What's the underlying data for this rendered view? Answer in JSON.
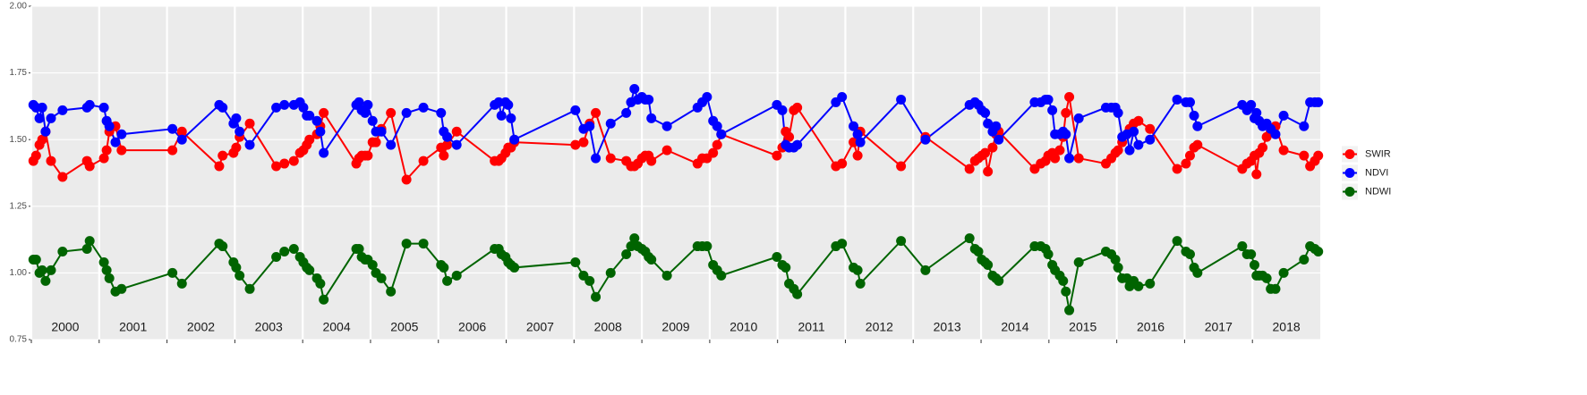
{
  "chart_data": {
    "type": "line",
    "x": [
      2000.03,
      2000.07,
      2000.12,
      2000.16,
      2000.21,
      2000.29,
      2000.46,
      2000.82,
      2000.86,
      2001.07,
      2001.11,
      2001.15,
      2001.24,
      2001.33,
      2002.08,
      2002.22,
      2002.77,
      2002.82,
      2002.98,
      2003.02,
      2003.07,
      2003.22,
      2003.61,
      2003.73,
      2003.87,
      2003.96,
      2004.01,
      2004.06,
      2004.1,
      2004.21,
      2004.26,
      2004.31,
      2004.79,
      2004.83,
      2004.87,
      2004.92,
      2004.96,
      2005.03,
      2005.08,
      2005.16,
      2005.3,
      2005.53,
      2005.78,
      2006.04,
      2006.08,
      2006.13,
      2006.27,
      2006.83,
      2006.89,
      2006.93,
      2006.99,
      2007.03,
      2007.07,
      2007.12,
      2008.02,
      2008.14,
      2008.23,
      2008.32,
      2008.54,
      2008.77,
      2008.84,
      2008.89,
      2008.94,
      2009.0,
      2009.05,
      2009.1,
      2009.14,
      2009.37,
      2009.82,
      2009.89,
      2009.96,
      2010.05,
      2010.11,
      2010.17,
      2010.99,
      2011.07,
      2011.12,
      2011.17,
      2011.24,
      2011.29,
      2011.86,
      2011.95,
      2012.12,
      2012.18,
      2012.22,
      2012.82,
      2013.18,
      2013.83,
      2013.91,
      2013.96,
      2014.01,
      2014.06,
      2014.1,
      2014.17,
      2014.22,
      2014.26,
      2014.79,
      2014.88,
      2014.95,
      2014.99,
      2015.05,
      2015.09,
      2015.16,
      2015.21,
      2015.25,
      2015.3,
      2015.44,
      2015.84,
      2015.92,
      2015.98,
      2016.02,
      2016.08,
      2016.15,
      2016.19,
      2016.25,
      2016.32,
      2016.49,
      2016.89,
      2017.02,
      2017.08,
      2017.14,
      2017.19,
      2017.85,
      2017.92,
      2017.98,
      2018.03,
      2018.06,
      2018.1,
      2018.15,
      2018.21,
      2018.27,
      2018.34,
      2018.46,
      2018.76,
      2018.85,
      2018.92,
      2018.97
    ],
    "series": [
      {
        "name": "SWIR",
        "color": "#ff0000",
        "values": [
          1.42,
          1.44,
          1.48,
          1.5,
          1.53,
          1.42,
          1.36,
          1.42,
          1.4,
          1.43,
          1.46,
          1.53,
          1.55,
          1.46,
          1.46,
          1.53,
          1.4,
          1.44,
          1.45,
          1.47,
          1.51,
          1.56,
          1.4,
          1.41,
          1.42,
          1.45,
          1.46,
          1.48,
          1.5,
          1.52,
          1.55,
          1.6,
          1.41,
          1.43,
          1.44,
          1.44,
          1.44,
          1.49,
          1.49,
          1.54,
          1.6,
          1.35,
          1.42,
          1.47,
          1.44,
          1.48,
          1.53,
          1.42,
          1.42,
          1.43,
          1.45,
          1.47,
          1.47,
          1.49,
          1.48,
          1.49,
          1.56,
          1.6,
          1.43,
          1.42,
          1.4,
          1.4,
          1.41,
          1.43,
          1.44,
          1.44,
          1.42,
          1.46,
          1.41,
          1.43,
          1.43,
          1.45,
          1.48,
          1.52,
          1.44,
          1.47,
          1.53,
          1.51,
          1.61,
          1.62,
          1.4,
          1.41,
          1.49,
          1.44,
          1.53,
          1.4,
          1.51,
          1.39,
          1.42,
          1.43,
          1.44,
          1.45,
          1.38,
          1.47,
          1.52,
          1.53,
          1.39,
          1.41,
          1.42,
          1.44,
          1.45,
          1.43,
          1.46,
          1.51,
          1.6,
          1.66,
          1.43,
          1.41,
          1.43,
          1.45,
          1.46,
          1.49,
          1.52,
          1.54,
          1.56,
          1.57,
          1.54,
          1.39,
          1.41,
          1.44,
          1.47,
          1.48,
          1.39,
          1.41,
          1.42,
          1.44,
          1.37,
          1.45,
          1.47,
          1.51,
          1.53,
          1.55,
          1.46,
          1.44,
          1.4,
          1.42,
          1.44
        ]
      },
      {
        "name": "NDVI",
        "color": "#0000ff",
        "values": [
          1.63,
          1.62,
          1.58,
          1.62,
          1.53,
          1.58,
          1.61,
          1.62,
          1.63,
          1.62,
          1.57,
          1.55,
          1.49,
          1.52,
          1.54,
          1.5,
          1.63,
          1.62,
          1.56,
          1.58,
          1.53,
          1.48,
          1.62,
          1.63,
          1.63,
          1.64,
          1.62,
          1.59,
          1.59,
          1.57,
          1.53,
          1.45,
          1.63,
          1.64,
          1.61,
          1.6,
          1.63,
          1.57,
          1.53,
          1.53,
          1.48,
          1.6,
          1.62,
          1.6,
          1.53,
          1.51,
          1.48,
          1.63,
          1.64,
          1.59,
          1.64,
          1.63,
          1.58,
          1.5,
          1.61,
          1.54,
          1.55,
          1.43,
          1.56,
          1.6,
          1.64,
          1.69,
          1.65,
          1.66,
          1.65,
          1.65,
          1.58,
          1.55,
          1.62,
          1.64,
          1.66,
          1.57,
          1.55,
          1.52,
          1.63,
          1.61,
          1.48,
          1.47,
          1.47,
          1.48,
          1.64,
          1.66,
          1.55,
          1.52,
          1.49,
          1.65,
          1.5,
          1.63,
          1.64,
          1.63,
          1.61,
          1.6,
          1.56,
          1.53,
          1.55,
          1.5,
          1.64,
          1.64,
          1.65,
          1.65,
          1.61,
          1.52,
          1.52,
          1.53,
          1.52,
          1.43,
          1.58,
          1.62,
          1.62,
          1.62,
          1.6,
          1.51,
          1.52,
          1.46,
          1.53,
          1.48,
          1.5,
          1.65,
          1.64,
          1.64,
          1.59,
          1.55,
          1.63,
          1.61,
          1.63,
          1.58,
          1.6,
          1.57,
          1.55,
          1.56,
          1.54,
          1.52,
          1.59,
          1.55,
          1.64,
          1.64,
          1.64
        ]
      },
      {
        "name": "NDWI",
        "color": "#006400",
        "values": [
          1.05,
          1.05,
          1.0,
          1.01,
          0.97,
          1.01,
          1.08,
          1.09,
          1.12,
          1.04,
          1.01,
          0.98,
          0.93,
          0.94,
          1.0,
          0.96,
          1.11,
          1.1,
          1.04,
          1.02,
          0.99,
          0.94,
          1.06,
          1.08,
          1.09,
          1.06,
          1.04,
          1.02,
          1.01,
          0.98,
          0.96,
          0.9,
          1.09,
          1.09,
          1.06,
          1.05,
          1.05,
          1.03,
          1.0,
          0.98,
          0.93,
          1.11,
          1.11,
          1.03,
          1.02,
          0.97,
          0.99,
          1.09,
          1.09,
          1.07,
          1.06,
          1.04,
          1.03,
          1.02,
          1.04,
          0.99,
          0.97,
          0.91,
          1.0,
          1.07,
          1.1,
          1.13,
          1.1,
          1.09,
          1.08,
          1.06,
          1.05,
          0.99,
          1.1,
          1.1,
          1.1,
          1.03,
          1.01,
          0.99,
          1.06,
          1.03,
          1.02,
          0.96,
          0.94,
          0.92,
          1.1,
          1.11,
          1.02,
          1.01,
          0.96,
          1.12,
          1.01,
          1.13,
          1.09,
          1.08,
          1.05,
          1.04,
          1.03,
          0.99,
          0.98,
          0.97,
          1.1,
          1.1,
          1.09,
          1.07,
          1.03,
          1.01,
          0.99,
          0.97,
          0.93,
          0.86,
          1.04,
          1.08,
          1.07,
          1.05,
          1.02,
          0.98,
          0.98,
          0.95,
          0.97,
          0.95,
          0.96,
          1.12,
          1.08,
          1.07,
          1.02,
          1.0,
          1.1,
          1.07,
          1.07,
          1.03,
          0.99,
          0.99,
          0.99,
          0.98,
          0.94,
          0.94,
          1.0,
          1.05,
          1.1,
          1.09,
          1.08
        ]
      }
    ],
    "xlim": [
      2000,
      2019
    ],
    "xticks": [
      {
        "value": 2000.5,
        "label": "2000"
      },
      {
        "value": 2001.5,
        "label": "2001"
      },
      {
        "value": 2002.5,
        "label": "2002"
      },
      {
        "value": 2003.5,
        "label": "2003"
      },
      {
        "value": 2004.5,
        "label": "2004"
      },
      {
        "value": 2005.5,
        "label": "2005"
      },
      {
        "value": 2006.5,
        "label": "2006"
      },
      {
        "value": 2007.5,
        "label": "2007"
      },
      {
        "value": 2008.5,
        "label": "2008"
      },
      {
        "value": 2009.5,
        "label": "2009"
      },
      {
        "value": 2010.5,
        "label": "2010"
      },
      {
        "value": 2011.5,
        "label": "2011"
      },
      {
        "value": 2012.5,
        "label": "2012"
      },
      {
        "value": 2013.5,
        "label": "2013"
      },
      {
        "value": 2014.5,
        "label": "2014"
      },
      {
        "value": 2015.5,
        "label": "2015"
      },
      {
        "value": 2016.5,
        "label": "2016"
      },
      {
        "value": 2017.5,
        "label": "2017"
      },
      {
        "value": 2018.5,
        "label": "2018"
      }
    ],
    "xbreaks": [
      2000,
      2001,
      2002,
      2003,
      2004,
      2005,
      2006,
      2007,
      2008,
      2009,
      2010,
      2011,
      2012,
      2013,
      2014,
      2015,
      2016,
      2017,
      2018
    ],
    "ylim": [
      0.75,
      2.0
    ],
    "yticks": [
      0.75,
      {
        "value": 1.0,
        "label": "1.00"
      },
      1.25,
      {
        "value": 1.5,
        "label": "1.50"
      },
      1.75,
      {
        "value": 2.0,
        "label": "2.00"
      }
    ],
    "grid": true,
    "legend": "right"
  }
}
